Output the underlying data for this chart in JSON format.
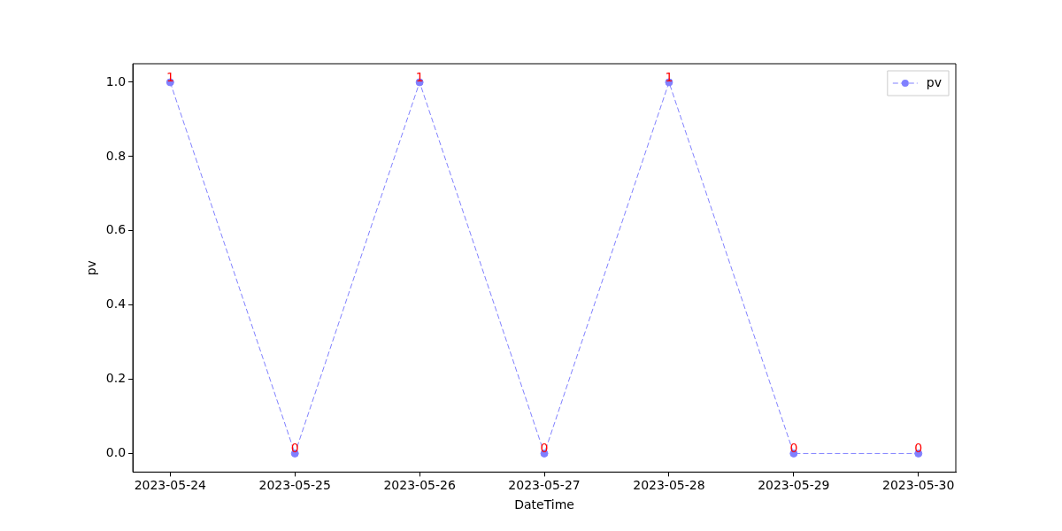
{
  "chart_data": {
    "type": "line",
    "xlabel": "DateTime",
    "ylabel": "pv",
    "x": [
      "2023-05-24",
      "2023-05-25",
      "2023-05-26",
      "2023-05-27",
      "2023-05-28",
      "2023-05-29",
      "2023-05-30"
    ],
    "series": [
      {
        "name": "pv",
        "color": "#8080ff",
        "values": [
          1,
          0,
          1,
          0,
          1,
          0,
          0
        ]
      }
    ],
    "xlim": [
      "2023-05-23T16:48",
      "2023-05-30T07:12"
    ],
    "xticks": [
      "2023-05-24",
      "2023-05-25",
      "2023-05-26",
      "2023-05-27",
      "2023-05-28",
      "2023-05-29",
      "2023-05-30"
    ],
    "ylim": [
      -0.05,
      1.05
    ],
    "yticks": [
      {
        "value": 0,
        "label": "0.0"
      },
      {
        "value": 0.2,
        "label": "0.2"
      },
      {
        "value": 0.4,
        "label": "0.4"
      },
      {
        "value": 0.6,
        "label": "0.6"
      },
      {
        "value": 0.8,
        "label": "0.8"
      },
      {
        "value": 1,
        "label": "1.0"
      }
    ],
    "grid": false,
    "legend": "top right",
    "marker": "circle",
    "line_style": "dashed",
    "data_labels": true
  }
}
